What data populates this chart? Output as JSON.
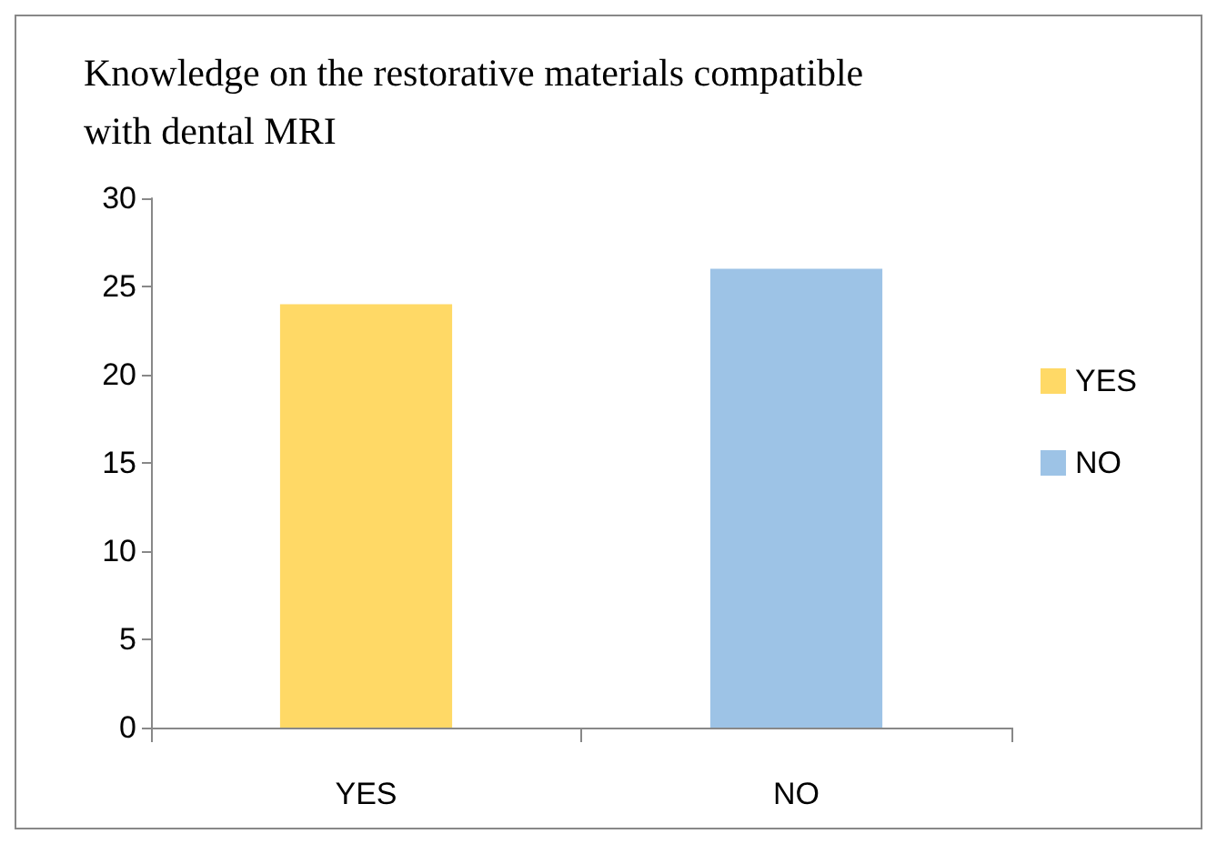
{
  "chart_data": {
    "type": "bar",
    "title": "Knowledge on the restorative materials compatible\nwith dental MRI",
    "categories": [
      "YES",
      "NO"
    ],
    "series": [
      {
        "name": "YES",
        "color": "#ffd966",
        "values": [
          24,
          null
        ]
      },
      {
        "name": "NO",
        "color": "#9dc3e6",
        "values": [
          null,
          26
        ]
      }
    ],
    "stacked": true,
    "ylim": [
      0,
      30
    ],
    "yticks": [
      0,
      5,
      10,
      15,
      20,
      25,
      30
    ],
    "grid": false,
    "legend": "right"
  }
}
